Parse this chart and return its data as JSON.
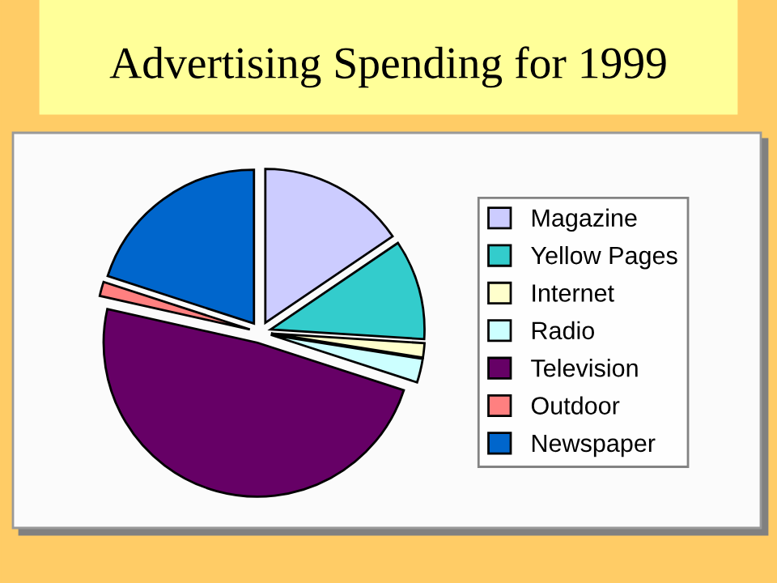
{
  "chart_data": {
    "type": "pie",
    "title": "Advertising Spending for 1999",
    "categories": [
      "Magazine",
      "Yellow Pages",
      "Internet",
      "Radio",
      "Television",
      "Outdoor",
      "Newspaper"
    ],
    "values": [
      15.5,
      10.5,
      1.5,
      2.5,
      48.5,
      1.5,
      20
    ],
    "colors": [
      "#ccccff",
      "#33cccc",
      "#ffffcc",
      "#ccffff",
      "#660066",
      "#ff8080",
      "#0066cc"
    ],
    "legend": "right"
  }
}
